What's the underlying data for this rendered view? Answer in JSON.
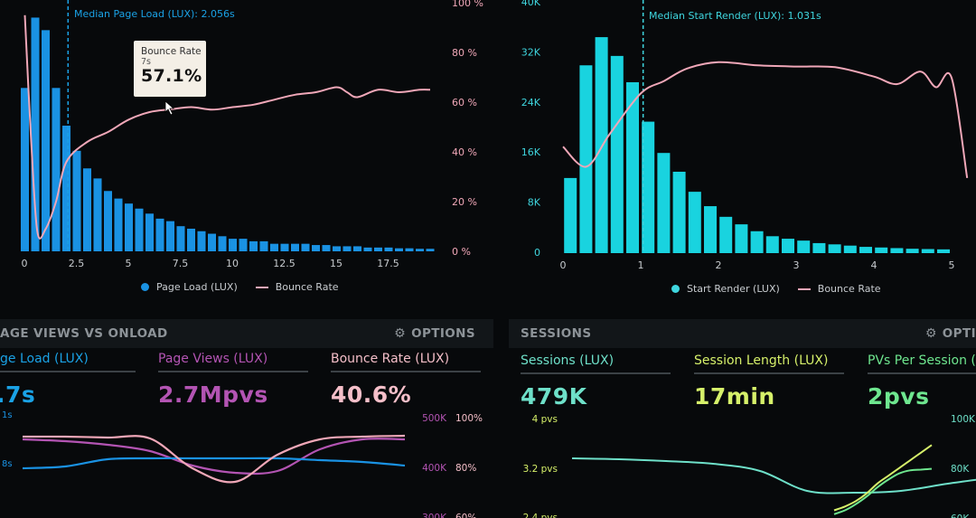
{
  "colors": {
    "blue": "#1a92e3",
    "cyan": "#19d3df",
    "pink": "#f0a7b8",
    "purple": "#b354b3",
    "bounce_pink": "#f5bfc9",
    "teal": "#6ee0c9",
    "lime": "#d6f06a",
    "green": "#6ee68f",
    "annot_blue": "#1aa2e6",
    "annot_cyan": "#3fd6df"
  },
  "top_left": {
    "annotation": "Median Page Load (LUX): 2.056s",
    "tooltip": {
      "title": "Bounce Rate",
      "subtitle": "7s",
      "value": "57.1%"
    },
    "legend": {
      "series1": "Page Load (LUX)",
      "series2": "Bounce Rate"
    }
  },
  "top_right": {
    "annotation": "Median Start Render (LUX): 1.031s",
    "legend": {
      "series1": "Start Render (LUX)",
      "series2": "Bounce Rate"
    }
  },
  "bottom_left": {
    "header": {
      "title": "AGE VIEWS VS ONLOAD",
      "options": "OPTIONS",
      "icon": "gear-icon"
    },
    "kpis": [
      {
        "label": "ge Load (LUX)",
        "value": ".7s"
      },
      {
        "label": "Page Views (LUX)",
        "value": "2.7Mpvs"
      },
      {
        "label": "Bounce Rate (LUX)",
        "value": "40.6%"
      }
    ]
  },
  "bottom_right": {
    "header": {
      "title": "SESSIONS",
      "options": "OPTI",
      "icon": "gear-icon"
    },
    "kpis": [
      {
        "label": "Sessions (LUX)",
        "value": "479K"
      },
      {
        "label": "Session Length (LUX)",
        "value": "17min"
      },
      {
        "label": "PVs Per Session (LU",
        "value": "2pvs"
      }
    ]
  },
  "chart_data": [
    {
      "type": "bar",
      "title": "",
      "series": [
        {
          "name": "Page Load (LUX)",
          "type": "bar",
          "x": [
            0,
            0.5,
            1,
            1.5,
            2,
            2.5,
            3,
            3.5,
            4,
            4.5,
            5,
            5.5,
            6,
            6.5,
            7,
            7.5,
            8,
            8.5,
            9,
            9.5,
            10,
            10.5,
            11,
            11.5,
            12,
            12.5,
            13,
            13.5,
            14,
            14.5,
            15,
            15.5,
            16,
            16.5,
            17,
            17.5,
            18,
            18.5,
            19,
            19.5
          ],
          "values": [
            65,
            93,
            88,
            65,
            50,
            40,
            33,
            29,
            24,
            21,
            19,
            17,
            15,
            13,
            12,
            10,
            9,
            8,
            7,
            6,
            5,
            5,
            4,
            4,
            3,
            3,
            3,
            3,
            2.5,
            2.5,
            2,
            2,
            2,
            1.5,
            1.5,
            1.5,
            1.2,
            1.2,
            1,
            1
          ]
        },
        {
          "name": "Bounce Rate",
          "type": "line",
          "x": [
            0,
            0.3,
            0.6,
            1,
            1.5,
            2,
            3,
            4,
            5,
            6,
            7,
            8,
            9,
            10,
            11,
            12,
            13,
            14,
            15,
            15.5,
            16,
            17,
            18,
            19,
            19.5
          ],
          "values": [
            95,
            45,
            8,
            9,
            20,
            36,
            44,
            48,
            53,
            56,
            57.1,
            58,
            57,
            58,
            59,
            61,
            63,
            64,
            66,
            64,
            62,
            65,
            64,
            65,
            65
          ]
        }
      ],
      "x_ticks": [
        "0",
        "2.5",
        "5",
        "7.5",
        "10",
        "12.5",
        "15",
        "17.5"
      ],
      "y_right_ticks": [
        "0 %",
        "20 %",
        "40 %",
        "60 %",
        "80 %",
        "100 %"
      ],
      "xlim": [
        0,
        20
      ],
      "ylim_right": [
        0,
        100
      ],
      "annotation_x": 2.056,
      "legend": "bottom"
    },
    {
      "type": "bar",
      "title": "",
      "series": [
        {
          "name": "Start Render (LUX)",
          "type": "bar",
          "x": [
            0.2,
            0.4,
            0.6,
            0.8,
            1.0,
            1.2,
            1.4,
            1.6,
            1.8,
            2.0,
            2.2,
            2.4,
            2.6,
            2.8,
            3.0,
            3.2,
            3.4,
            3.6,
            3.8,
            4.0,
            4.2,
            4.4,
            4.6,
            4.8,
            5.0
          ],
          "values": [
            12000,
            30000,
            34500,
            31500,
            27300,
            21000,
            16000,
            13000,
            9800,
            7500,
            5800,
            4600,
            3500,
            2700,
            2300,
            2000,
            1600,
            1400,
            1200,
            1000,
            900,
            800,
            700,
            650,
            600
          ]
        },
        {
          "name": "Bounce Rate",
          "type": "line",
          "x": [
            0,
            0.3,
            0.6,
            1,
            1.3,
            1.6,
            2,
            2.5,
            3,
            3.5,
            4,
            4.3,
            4.6,
            4.8,
            5.0,
            5.2
          ],
          "values": [
            17000,
            13800,
            19000,
            25500,
            27500,
            29500,
            30500,
            30000,
            29800,
            29700,
            28200,
            27000,
            29000,
            26500,
            28000,
            12000
          ]
        }
      ],
      "x_ticks": [
        "0",
        "1",
        "2",
        "3",
        "4",
        "5"
      ],
      "y_ticks": [
        "0",
        "8K",
        "16K",
        "24K",
        "32K",
        "40K"
      ],
      "xlim": [
        0,
        5.3
      ],
      "ylim": [
        0,
        40000
      ],
      "annotation_x": 1.031,
      "legend": "bottom"
    },
    {
      "type": "line",
      "title": "",
      "series": [
        {
          "name": "Page Views (LUX)",
          "values": [
            87,
            85,
            81,
            74,
            58,
            50,
            52,
            76,
            87,
            87
          ]
        },
        {
          "name": "Page Load (LUX)",
          "values": [
            55,
            57,
            65,
            66,
            66,
            66,
            66,
            64,
            62,
            58
          ]
        },
        {
          "name": "Bounce Rate (LUX)",
          "values": [
            90,
            90,
            89,
            88,
            55,
            40,
            70,
            87,
            90,
            91
          ]
        }
      ],
      "x": [
        0,
        1,
        2,
        3,
        4,
        5,
        6,
        7,
        8,
        9
      ],
      "y_left_ticks": [
        "1s",
        "8s"
      ],
      "y_right_ticks_1": [
        "500K",
        "400K",
        "300K"
      ],
      "y_right_ticks_2": [
        "100%",
        "80%",
        "60%"
      ]
    },
    {
      "type": "line",
      "title": "",
      "series": [
        {
          "name": "Sessions (LUX)",
          "values": [
            66,
            65,
            63,
            60,
            52,
            30,
            28,
            30,
            38,
            45
          ]
        },
        {
          "name": "Session Length (LUX)",
          "values": [
            10,
            15,
            22,
            32,
            45,
            55,
            65,
            75,
            85,
            95
          ]
        },
        {
          "name": "PVs Per Session (LUX)",
          "values": [
            5,
            10,
            18,
            28,
            40,
            50,
            58,
            62,
            63,
            64
          ]
        }
      ],
      "x": [
        0,
        1,
        2,
        3,
        4,
        5,
        6,
        7,
        8,
        9
      ],
      "y_left_ticks": [
        "4 pvs",
        "3.2 pvs",
        "2.4 pvs"
      ],
      "y_right_ticks": [
        "100K",
        "80K",
        "60K"
      ]
    }
  ]
}
